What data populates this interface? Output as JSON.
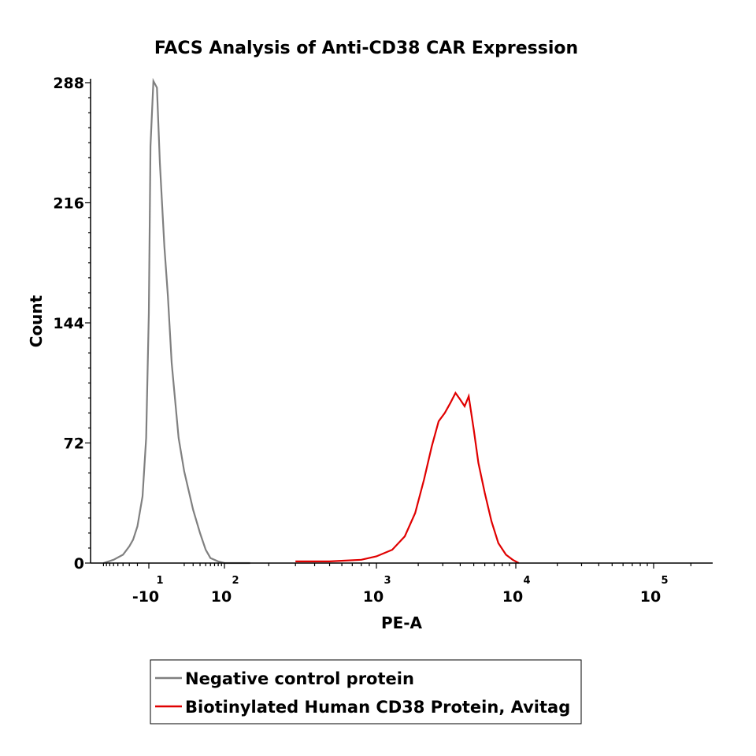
{
  "chart_data": {
    "type": "line",
    "title": "FACS Analysis of Anti-CD38 CAR Expression",
    "xlabel": "PE-A",
    "ylabel": "Count",
    "x_scale": "biexponential",
    "x_tick_labels": [
      {
        "base": "-10",
        "exp": "1"
      },
      {
        "base": "10",
        "exp": "2"
      },
      {
        "base": "10",
        "exp": "3"
      },
      {
        "base": "10",
        "exp": "4"
      },
      {
        "base": "10",
        "exp": "5"
      }
    ],
    "y_ticks": [
      "0",
      "72",
      "144",
      "216",
      "288"
    ],
    "ylim": [
      0,
      288
    ],
    "grid": false,
    "legend_position": "bottom",
    "series": [
      {
        "name": "Negative control protein",
        "color": "#808080",
        "x": [
          -90,
          -60,
          -40,
          -30,
          -25,
          -20,
          -15,
          -12,
          -10,
          -8,
          -5,
          -2,
          0,
          3,
          6,
          10,
          15,
          20,
          30,
          40,
          50,
          60,
          80,
          100,
          150
        ],
        "y": [
          0,
          2,
          5,
          10,
          14,
          22,
          40,
          75,
          150,
          250,
          289,
          285,
          240,
          190,
          160,
          120,
          75,
          55,
          32,
          18,
          8,
          3,
          1,
          0,
          0
        ]
      },
      {
        "name": "Biotinylated Human CD38 Protein, Avitag",
        "color": "#e00000",
        "x": [
          300,
          500,
          800,
          1000,
          1300,
          1600,
          1900,
          2200,
          2500,
          2800,
          3100,
          3400,
          3700,
          4000,
          4300,
          4600,
          5000,
          5400,
          6000,
          6700,
          7500,
          8500,
          9500,
          10500
        ],
        "y": [
          1,
          1,
          2,
          4,
          8,
          16,
          30,
          50,
          70,
          85,
          90,
          96,
          102,
          98,
          94,
          100,
          80,
          60,
          42,
          25,
          12,
          5,
          2,
          0
        ]
      }
    ]
  }
}
